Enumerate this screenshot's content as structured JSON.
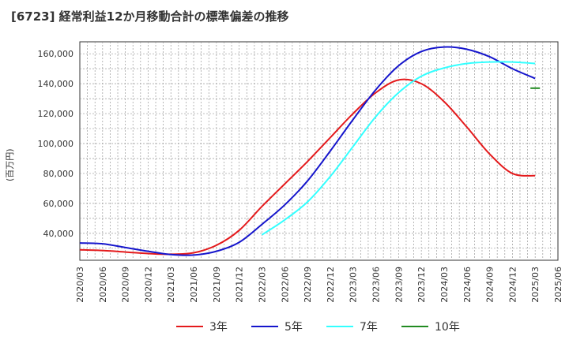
{
  "chart_data": {
    "type": "line",
    "title": "[6723]  経常利益12か月移動合計の標準偏差の推移",
    "ylabel": "(百万円)",
    "xlabel": "",
    "ylim": [
      22000,
      168000
    ],
    "yticks": [
      40000,
      60000,
      80000,
      100000,
      120000,
      140000,
      160000
    ],
    "ytick_labels": [
      "40,000",
      "60,000",
      "80,000",
      "100,000",
      "120,000",
      "140,000",
      "160,000"
    ],
    "xticks": [
      "2020/03",
      "2020/06",
      "2020/09",
      "2020/12",
      "2021/03",
      "2021/06",
      "2021/09",
      "2021/12",
      "2022/03",
      "2022/06",
      "2022/09",
      "2022/12",
      "2023/03",
      "2023/06",
      "2023/09",
      "2023/12",
      "2024/03",
      "2024/06",
      "2024/09",
      "2024/12",
      "2025/03",
      "2025/06"
    ],
    "grid": true,
    "legend_position": "bottom",
    "x": [
      "2020/03",
      "2020/06",
      "2020/09",
      "2020/12",
      "2021/03",
      "2021/06",
      "2021/09",
      "2021/12",
      "2022/03",
      "2022/06",
      "2022/09",
      "2022/12",
      "2023/03",
      "2023/06",
      "2023/09",
      "2023/12",
      "2024/03",
      "2024/06",
      "2024/09",
      "2024/12",
      "2025/03"
    ],
    "series": [
      {
        "name": "3年",
        "color": "#e41a1c",
        "values": [
          29000,
          28500,
          27500,
          26500,
          26000,
          27000,
          32000,
          42000,
          58000,
          73000,
          88000,
          104000,
          120000,
          134000,
          142500,
          140000,
          128000,
          111000,
          93000,
          80000,
          78500
        ]
      },
      {
        "name": "5年",
        "color": "#1515cc",
        "values": [
          33500,
          33000,
          30500,
          28000,
          25800,
          25500,
          28000,
          34000,
          46000,
          59000,
          75000,
          95000,
          116000,
          136000,
          152000,
          161500,
          164500,
          163000,
          158000,
          150000,
          143500
        ]
      },
      {
        "name": "7年",
        "color": "#33ffff",
        "values": [
          null,
          null,
          null,
          null,
          null,
          null,
          null,
          null,
          39000,
          49000,
          61000,
          78000,
          98000,
          118000,
          134000,
          145000,
          150500,
          153500,
          154500,
          154500,
          153500
        ]
      },
      {
        "name": "10年",
        "color": "#228b22",
        "values": [
          null,
          null,
          null,
          null,
          null,
          null,
          null,
          null,
          null,
          null,
          null,
          null,
          null,
          null,
          null,
          null,
          null,
          null,
          null,
          null,
          137000
        ]
      }
    ]
  }
}
